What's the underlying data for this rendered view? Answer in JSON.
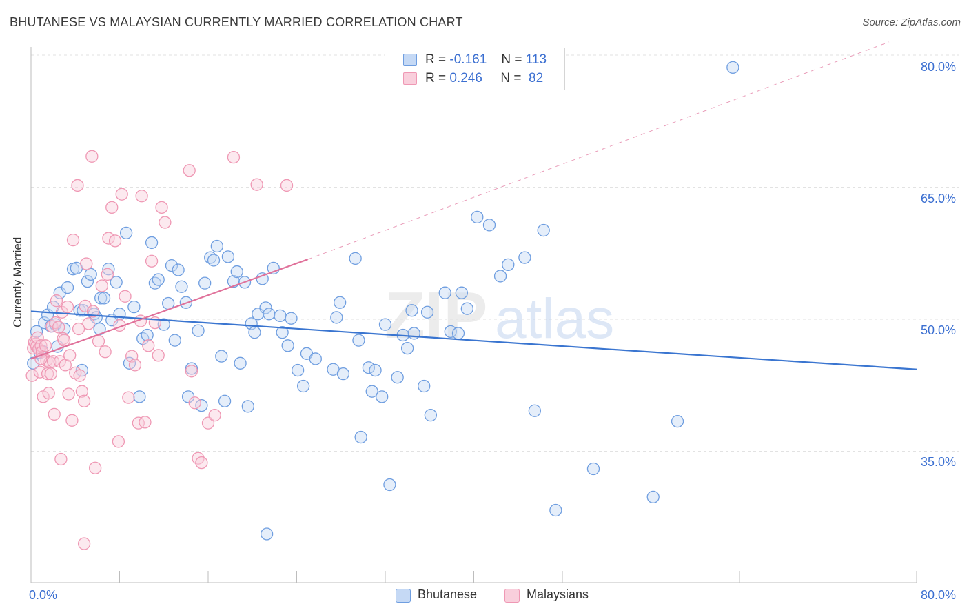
{
  "title": "BHUTANESE VS MALAYSIAN CURRENTLY MARRIED CORRELATION CHART",
  "source": "Source: ZipAtlas.com",
  "watermark": {
    "zip": "ZIP",
    "atlas": "atlas"
  },
  "legend_top": {
    "rows": [
      {
        "r_label": "R =",
        "r_value": "-0.161",
        "n_label": "N =",
        "n_value": "113"
      },
      {
        "r_label": "R =",
        "r_value": "0.246",
        "n_label": "N =",
        "n_value": "82"
      }
    ]
  },
  "legend_bottom": {
    "items": [
      "Bhutanese",
      "Malaysians"
    ]
  },
  "axes": {
    "ylabel": "Currently Married",
    "x_tick_left": "0.0%",
    "x_tick_right": "80.0%",
    "y_ticks": [
      "80.0%",
      "65.0%",
      "50.0%",
      "35.0%"
    ]
  },
  "colors": {
    "blue": "#6f9ee0",
    "blue_fill": "#c5d9f5",
    "blue_line": "#3a75d0",
    "pink": "#ef98b4",
    "pink_fill": "#f9cfdc",
    "pink_line": "#e0719a",
    "grid": "#e2e2e2",
    "axis_text": "#3b6fd1"
  },
  "chart_data": {
    "type": "scatter",
    "title": "BHUTANESE VS MALAYSIAN CURRENTLY MARRIED CORRELATION CHART",
    "xlabel": "",
    "ylabel": "Currently Married",
    "xlim": [
      0,
      80
    ],
    "ylim": [
      20,
      82
    ],
    "y_gridlines": [
      35,
      50,
      65,
      80
    ],
    "legend_placement": "bottom",
    "series": [
      {
        "name": "Bhutanese",
        "r": -0.161,
        "n": 113,
        "trend": {
          "x": [
            0,
            80
          ],
          "y": [
            50.9,
            44.3
          ]
        },
        "points": [
          [
            0.5,
            48.6
          ],
          [
            0.8,
            46.2
          ],
          [
            1.2,
            49.6
          ],
          [
            1.5,
            50.5
          ],
          [
            1.8,
            49.2
          ],
          [
            2.0,
            51.4
          ],
          [
            2.2,
            49.4
          ],
          [
            2.6,
            53.0
          ],
          [
            3.0,
            48.9
          ],
          [
            3.3,
            53.6
          ],
          [
            3.8,
            55.7
          ],
          [
            4.1,
            55.8
          ],
          [
            4.4,
            51.0
          ],
          [
            4.7,
            51.0
          ],
          [
            5.1,
            54.3
          ],
          [
            5.4,
            55.1
          ],
          [
            5.7,
            50.6
          ],
          [
            5.9,
            50.2
          ],
          [
            6.3,
            52.4
          ],
          [
            6.6,
            52.4
          ],
          [
            7.0,
            55.7
          ],
          [
            7.3,
            49.9
          ],
          [
            7.7,
            54.2
          ],
          [
            8.0,
            50.6
          ],
          [
            8.6,
            59.8
          ],
          [
            8.9,
            45.0
          ],
          [
            9.3,
            51.4
          ],
          [
            9.8,
            41.2
          ],
          [
            10.1,
            47.8
          ],
          [
            10.5,
            48.2
          ],
          [
            10.9,
            58.7
          ],
          [
            11.2,
            54.1
          ],
          [
            11.5,
            54.5
          ],
          [
            12.0,
            49.4
          ],
          [
            12.4,
            51.8
          ],
          [
            12.7,
            56.1
          ],
          [
            13.0,
            47.6
          ],
          [
            13.3,
            55.6
          ],
          [
            13.6,
            53.7
          ],
          [
            14.0,
            51.9
          ],
          [
            14.2,
            41.2
          ],
          [
            14.5,
            44.4
          ],
          [
            15.1,
            48.7
          ],
          [
            15.4,
            40.2
          ],
          [
            15.7,
            54.1
          ],
          [
            16.2,
            57.0
          ],
          [
            16.5,
            56.7
          ],
          [
            16.8,
            58.3
          ],
          [
            17.2,
            45.8
          ],
          [
            17.5,
            40.7
          ],
          [
            17.8,
            57.1
          ],
          [
            18.3,
            54.3
          ],
          [
            18.6,
            55.4
          ],
          [
            18.9,
            45.0
          ],
          [
            19.3,
            54.2
          ],
          [
            19.6,
            40.1
          ],
          [
            19.9,
            49.5
          ],
          [
            20.2,
            48.5
          ],
          [
            20.5,
            50.6
          ],
          [
            20.9,
            54.6
          ],
          [
            21.2,
            51.3
          ],
          [
            21.5,
            50.6
          ],
          [
            21.9,
            55.8
          ],
          [
            22.5,
            50.4
          ],
          [
            22.7,
            48.5
          ],
          [
            23.2,
            47.0
          ],
          [
            23.5,
            50.1
          ],
          [
            24.1,
            44.2
          ],
          [
            24.6,
            42.4
          ],
          [
            24.9,
            46.1
          ],
          [
            25.7,
            45.5
          ],
          [
            27.3,
            44.3
          ],
          [
            27.6,
            50.2
          ],
          [
            27.9,
            51.9
          ],
          [
            28.2,
            43.8
          ],
          [
            29.3,
            56.9
          ],
          [
            29.6,
            47.6
          ],
          [
            29.8,
            36.6
          ],
          [
            30.5,
            44.5
          ],
          [
            30.8,
            41.8
          ],
          [
            31.1,
            44.2
          ],
          [
            31.7,
            41.2
          ],
          [
            32.0,
            49.4
          ],
          [
            32.4,
            31.2
          ],
          [
            33.1,
            43.4
          ],
          [
            33.6,
            48.2
          ],
          [
            34.0,
            46.7
          ],
          [
            34.4,
            51.0
          ],
          [
            34.6,
            48.4
          ],
          [
            35.5,
            42.4
          ],
          [
            35.8,
            50.8
          ],
          [
            36.1,
            39.1
          ],
          [
            37.4,
            53.0
          ],
          [
            37.9,
            48.6
          ],
          [
            38.6,
            48.4
          ],
          [
            38.9,
            53.0
          ],
          [
            39.4,
            51.2
          ],
          [
            40.3,
            61.6
          ],
          [
            41.4,
            60.7
          ],
          [
            42.4,
            54.9
          ],
          [
            43.1,
            56.2
          ],
          [
            44.6,
            57.0
          ],
          [
            45.5,
            39.6
          ],
          [
            46.3,
            60.1
          ],
          [
            47.4,
            28.3
          ],
          [
            50.8,
            33.0
          ],
          [
            56.2,
            29.8
          ],
          [
            58.4,
            38.4
          ],
          [
            63.4,
            78.6
          ],
          [
            21.3,
            25.6
          ],
          [
            1.0,
            46.4
          ],
          [
            4.6,
            44.2
          ],
          [
            2.4,
            46.9
          ],
          [
            6.2,
            48.9
          ],
          [
            0.2,
            45.0
          ]
        ]
      },
      {
        "name": "Malaysians",
        "r": 0.246,
        "n": 82,
        "trend": {
          "x": [
            0,
            25
          ],
          "y": [
            45.5,
            56.8
          ]
        },
        "trend_extended": {
          "x": [
            25,
            80
          ],
          "y": [
            56.8,
            81.5
          ]
        },
        "points": [
          [
            0.1,
            43.6
          ],
          [
            0.2,
            46.7
          ],
          [
            0.3,
            47.4
          ],
          [
            0.4,
            47.2
          ],
          [
            0.5,
            46.9
          ],
          [
            0.6,
            47.9
          ],
          [
            0.7,
            46.6
          ],
          [
            0.8,
            44.0
          ],
          [
            0.9,
            47.0
          ],
          [
            1.0,
            46.3
          ],
          [
            1.1,
            41.2
          ],
          [
            1.3,
            47.0
          ],
          [
            1.4,
            45.3
          ],
          [
            1.5,
            43.8
          ],
          [
            1.6,
            41.6
          ],
          [
            1.7,
            45.1
          ],
          [
            1.9,
            49.2
          ],
          [
            2.0,
            45.2
          ],
          [
            2.1,
            39.2
          ],
          [
            2.2,
            49.6
          ],
          [
            2.3,
            52.1
          ],
          [
            2.5,
            49.1
          ],
          [
            2.6,
            45.2
          ],
          [
            2.8,
            50.8
          ],
          [
            2.9,
            47.8
          ],
          [
            3.1,
            44.8
          ],
          [
            3.3,
            51.4
          ],
          [
            3.4,
            41.5
          ],
          [
            3.5,
            45.9
          ],
          [
            3.7,
            38.5
          ],
          [
            3.8,
            59.0
          ],
          [
            4.0,
            43.9
          ],
          [
            4.2,
            65.2
          ],
          [
            4.4,
            43.6
          ],
          [
            4.6,
            41.8
          ],
          [
            4.8,
            40.7
          ],
          [
            4.9,
            51.5
          ],
          [
            5.0,
            56.3
          ],
          [
            5.2,
            49.5
          ],
          [
            5.5,
            68.5
          ],
          [
            5.8,
            33.1
          ],
          [
            6.1,
            47.5
          ],
          [
            6.4,
            53.8
          ],
          [
            6.7,
            46.3
          ],
          [
            7.0,
            59.2
          ],
          [
            7.3,
            62.7
          ],
          [
            7.6,
            58.9
          ],
          [
            7.9,
            36.1
          ],
          [
            8.2,
            64.2
          ],
          [
            8.5,
            52.6
          ],
          [
            8.8,
            41.1
          ],
          [
            9.1,
            45.8
          ],
          [
            9.4,
            44.8
          ],
          [
            9.7,
            38.2
          ],
          [
            10.0,
            64.0
          ],
          [
            10.3,
            38.3
          ],
          [
            10.6,
            47.0
          ],
          [
            10.9,
            56.6
          ],
          [
            11.2,
            49.6
          ],
          [
            11.5,
            45.9
          ],
          [
            11.8,
            62.7
          ],
          [
            12.1,
            61.0
          ],
          [
            14.3,
            66.9
          ],
          [
            14.5,
            44.1
          ],
          [
            14.8,
            40.5
          ],
          [
            15.1,
            34.2
          ],
          [
            15.4,
            33.7
          ],
          [
            16.0,
            38.2
          ],
          [
            16.6,
            39.1
          ],
          [
            18.3,
            68.4
          ],
          [
            20.4,
            65.3
          ],
          [
            23.1,
            65.2
          ],
          [
            2.7,
            34.1
          ],
          [
            4.8,
            24.5
          ],
          [
            6.9,
            55.1
          ],
          [
            8.0,
            49.3
          ],
          [
            3.0,
            47.6
          ],
          [
            1.8,
            43.8
          ],
          [
            0.9,
            45.5
          ],
          [
            5.6,
            50.9
          ],
          [
            9.9,
            49.8
          ],
          [
            4.3,
            48.9
          ]
        ]
      }
    ]
  }
}
